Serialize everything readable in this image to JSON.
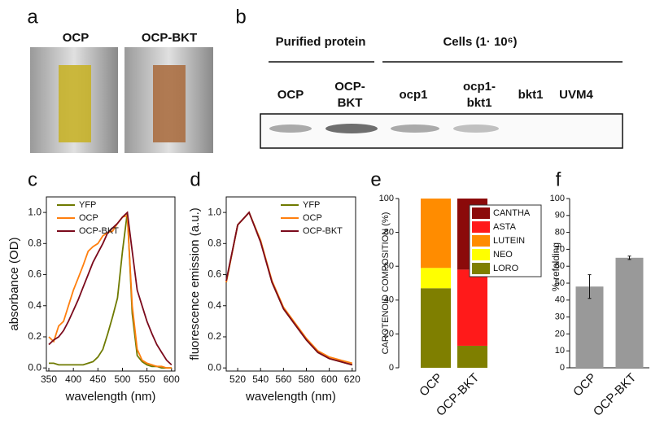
{
  "figure": {
    "panel_a": {
      "label": "a",
      "photos": [
        "OCP",
        "OCP-BKT"
      ]
    },
    "panel_b": {
      "label": "b",
      "groups": [
        "Purified protein",
        "Cells (1· 10⁶)"
      ],
      "lanes": [
        [
          "OCP"
        ],
        [
          "OCP-",
          "BKT"
        ],
        [
          "ocp1"
        ],
        [
          "ocp1-",
          "bkt1"
        ],
        [
          "bkt1"
        ],
        [
          "UVM4"
        ]
      ]
    }
  },
  "chart_data": [
    {
      "type": "line",
      "label": "c",
      "xlabel": "wavelength (nm)",
      "ylabel": "absorbance (OD)",
      "x": [
        350,
        360,
        370,
        380,
        390,
        400,
        410,
        420,
        430,
        440,
        450,
        460,
        470,
        480,
        490,
        500,
        510,
        520,
        530,
        540,
        550,
        560,
        570,
        580,
        590,
        600
      ],
      "series": [
        {
          "name": "YFP",
          "color": "#6e7a00",
          "values": [
            0.03,
            0.03,
            0.02,
            0.02,
            0.02,
            0.02,
            0.02,
            0.02,
            0.03,
            0.04,
            0.07,
            0.12,
            0.22,
            0.33,
            0.45,
            0.75,
            1.0,
            0.35,
            0.08,
            0.04,
            0.02,
            0.01,
            0.01,
            0.0,
            0.0,
            0.0
          ]
        },
        {
          "name": "OCP",
          "color": "#ff7f0e",
          "values": [
            0.2,
            0.17,
            0.27,
            0.3,
            0.4,
            0.5,
            0.58,
            0.66,
            0.75,
            0.78,
            0.8,
            0.85,
            0.87,
            0.88,
            0.93,
            0.97,
            0.98,
            0.4,
            0.12,
            0.05,
            0.03,
            0.02,
            0.01,
            0.01,
            0.0,
            0.0
          ]
        },
        {
          "name": "OCP-BKT",
          "color": "#7b0a1c",
          "values": [
            0.15,
            0.18,
            0.2,
            0.24,
            0.3,
            0.37,
            0.44,
            0.52,
            0.6,
            0.68,
            0.74,
            0.8,
            0.87,
            0.9,
            0.93,
            0.97,
            1.0,
            0.75,
            0.5,
            0.4,
            0.3,
            0.22,
            0.15,
            0.1,
            0.05,
            0.02
          ]
        }
      ],
      "xlim": [
        345,
        607
      ],
      "xticks": [
        350,
        400,
        450,
        500,
        550,
        600
      ],
      "ylim": [
        -0.02,
        1.1
      ],
      "yticks": [
        {
          "value": 0,
          "label": "0.0"
        },
        {
          "value": 0.2,
          "label": "0.2"
        },
        {
          "value": 0.4,
          "label": "0.4"
        },
        {
          "value": 0.6,
          "label": "0.6"
        },
        {
          "value": 0.8,
          "label": "0.8"
        },
        {
          "value": 1,
          "label": "1.0"
        }
      ],
      "legend": "upper left"
    },
    {
      "type": "line",
      "label": "d",
      "xlabel": "wavelength (nm)",
      "ylabel": "fluorescence emission (a.u.)",
      "x": [
        510,
        520,
        530,
        540,
        550,
        560,
        570,
        580,
        590,
        600,
        610,
        620
      ],
      "series": [
        {
          "name": "YFP",
          "color": "#6e7a00",
          "values": [
            0.55,
            0.92,
            1.0,
            0.82,
            0.55,
            0.38,
            0.28,
            0.18,
            0.1,
            0.06,
            0.04,
            0.02
          ]
        },
        {
          "name": "OCP",
          "color": "#ff7f0e",
          "values": [
            0.55,
            0.92,
            1.0,
            0.82,
            0.56,
            0.39,
            0.29,
            0.19,
            0.11,
            0.07,
            0.05,
            0.03
          ]
        },
        {
          "name": "OCP-BKT",
          "color": "#7b0a1c",
          "values": [
            0.56,
            0.92,
            1.0,
            0.81,
            0.55,
            0.38,
            0.28,
            0.18,
            0.1,
            0.06,
            0.04,
            0.02
          ]
        }
      ],
      "xlim": [
        510,
        623
      ],
      "xticks": [
        520,
        540,
        560,
        580,
        600,
        620
      ],
      "ylim": [
        -0.02,
        1.1
      ],
      "yticks": [
        {
          "value": 0,
          "label": "0.0"
        },
        {
          "value": 0.2,
          "label": "0.2"
        },
        {
          "value": 0.4,
          "label": "0.4"
        },
        {
          "value": 0.6,
          "label": "0.6"
        },
        {
          "value": 0.8,
          "label": "0.8"
        },
        {
          "value": 1,
          "label": "1.0"
        }
      ],
      "legend": "upper right"
    },
    {
      "type": "bar",
      "stacked": true,
      "label": "e",
      "ylabel": "CAROTENOID COMPOSITION (%)",
      "categories": [
        "OCP",
        "OCP-BKT"
      ],
      "series": [
        {
          "name": "CANTHA",
          "color": "#8b0a0a",
          "values": [
            0,
            42
          ]
        },
        {
          "name": "ASTA",
          "color": "#ff1a1a",
          "values": [
            0,
            45
          ]
        },
        {
          "name": "LUTEIN",
          "color": "#ff8c00",
          "values": [
            41,
            0
          ]
        },
        {
          "name": "NEO",
          "color": "#ffff00",
          "values": [
            12,
            0
          ]
        },
        {
          "name": "LORO",
          "color": "#7f7f00",
          "values": [
            47,
            13
          ]
        }
      ],
      "ylim": [
        0,
        100
      ],
      "yticks": [
        0,
        20,
        40,
        60,
        80,
        100
      ],
      "legend": "right"
    },
    {
      "type": "bar",
      "label": "f",
      "ylabel": "% refolding",
      "categories": [
        "OCP",
        "OCP-BKT"
      ],
      "values": [
        48,
        65
      ],
      "errors": [
        7,
        1
      ],
      "color": "#999999",
      "ylim": [
        0,
        100
      ],
      "yticks": [
        0,
        10,
        20,
        30,
        40,
        50,
        60,
        70,
        80,
        90,
        100
      ]
    }
  ]
}
